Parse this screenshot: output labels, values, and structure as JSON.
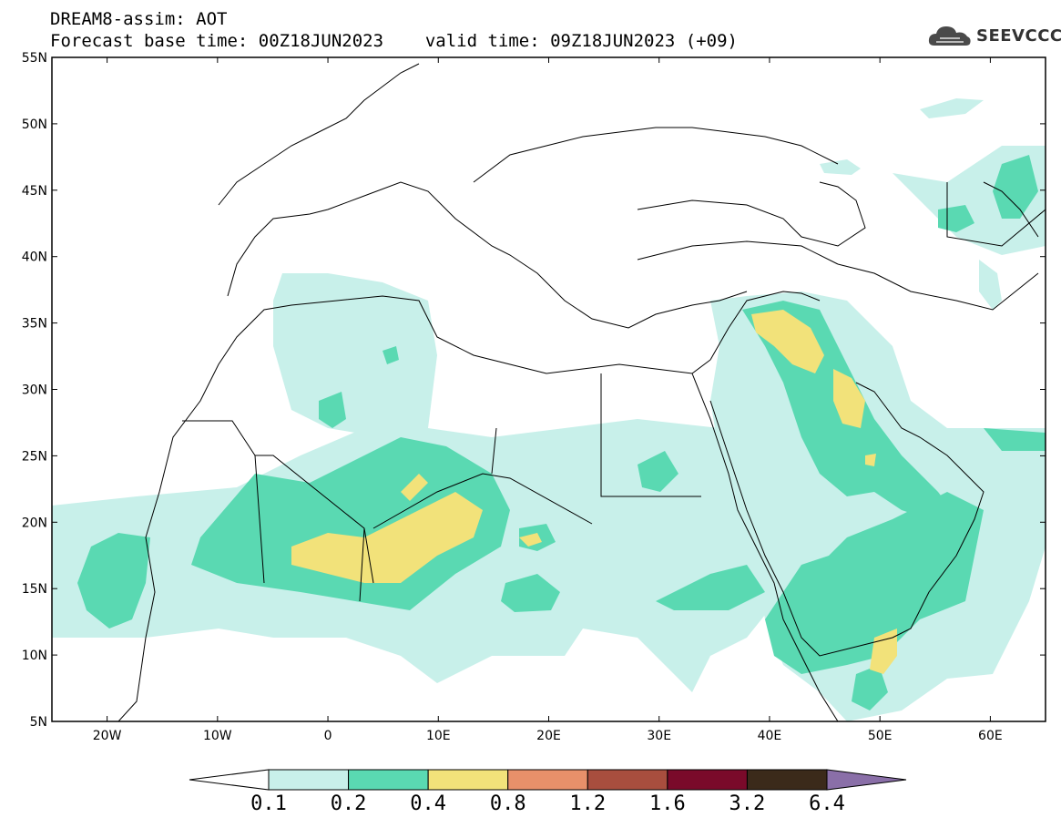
{
  "header": {
    "title": "DREAM8-assim: AOT",
    "base_time_label": "Forecast base time: 00Z18JUN2023",
    "valid_time_label": "valid time: 09Z18JUN2023 (+09)"
  },
  "logo": {
    "text": "SEEVCCC",
    "icon": "cloud-icon"
  },
  "map": {
    "lat_labels": [
      "55N",
      "50N",
      "45N",
      "40N",
      "35N",
      "30N",
      "25N",
      "20N",
      "15N",
      "10N",
      "5N"
    ],
    "lon_labels": [
      "20W",
      "10W",
      "0",
      "10E",
      "20E",
      "30E",
      "40E",
      "50E",
      "60E"
    ],
    "lat_range": [
      5,
      55
    ],
    "lon_range": [
      -25,
      65
    ]
  },
  "colorbar": {
    "labels": [
      "0.1",
      "0.2",
      "0.4",
      "0.8",
      "1.2",
      "1.6",
      "3.2",
      "6.4"
    ],
    "colors": [
      "#ffffff",
      "#c8f0ea",
      "#5ad9b2",
      "#f2e27a",
      "#e8906a",
      "#a84e3e",
      "#7a0a2a",
      "#3b2a1a",
      "#8a6fa8"
    ]
  }
}
